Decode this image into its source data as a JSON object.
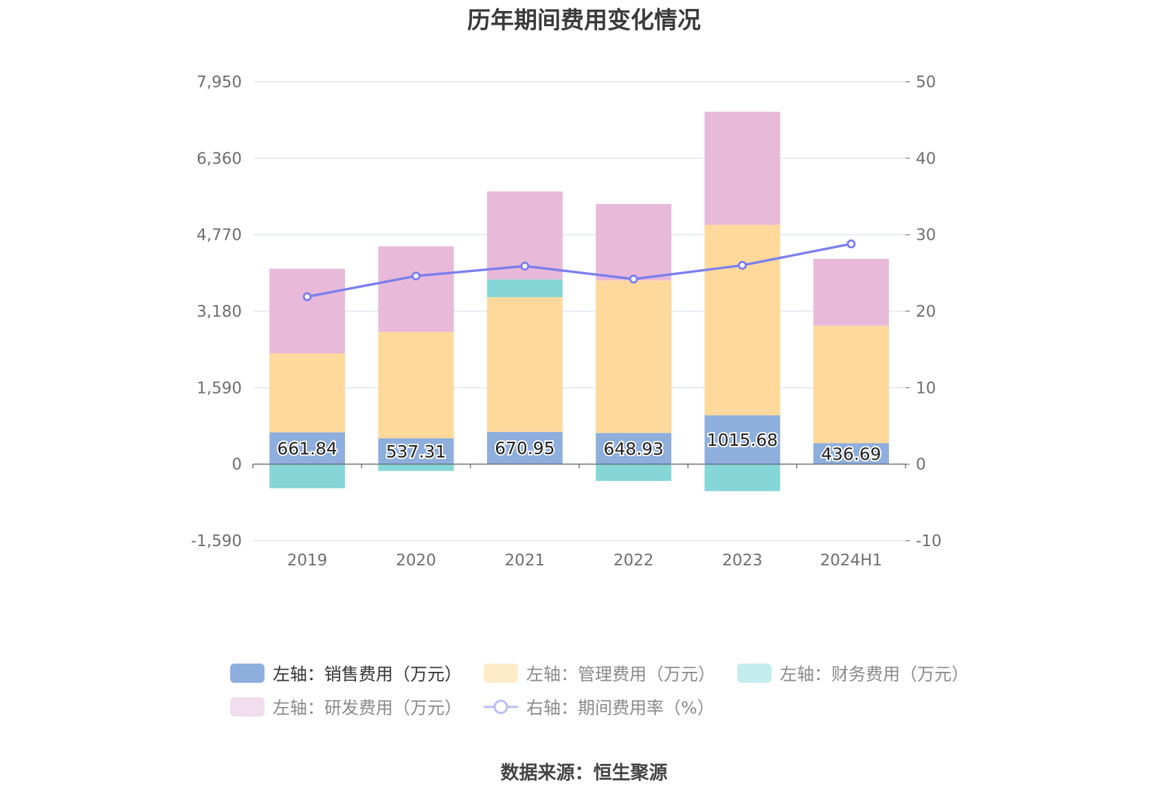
{
  "title": "历年期间费用变化情况",
  "source": "数据来源：恒生聚源",
  "chart_data": {
    "type": "bar",
    "categories": [
      "2019",
      "2020",
      "2021",
      "2022",
      "2023",
      "2024H1"
    ],
    "y_left": {
      "ylim": [
        -1590,
        7950
      ],
      "ticks": [
        "-1,590",
        "0",
        "1,590",
        "3,180",
        "4,770",
        "6,360",
        "7,950"
      ]
    },
    "y_right": {
      "ylim": [
        -10,
        50
      ],
      "ticks": [
        "-10",
        "0",
        "10",
        "20",
        "30",
        "40",
        "50"
      ]
    },
    "series": [
      {
        "name": "左轴：销售费用（万元）",
        "type": "bar",
        "axis": "left",
        "color": "#8eaedd",
        "values": [
          661.84,
          537.31,
          670.95,
          648.93,
          1015.68,
          436.69
        ],
        "labels": [
          "661.84",
          "537.31",
          "670.95",
          "648.93",
          "1015.68",
          "436.69"
        ]
      },
      {
        "name": "左轴：管理费用（万元）",
        "type": "bar",
        "axis": "left",
        "color": "#fed99b",
        "values": [
          1640,
          2210,
          2800,
          3170,
          3960,
          2440
        ]
      },
      {
        "name": "左轴：财务费用（万元）",
        "type": "bar",
        "axis": "left",
        "color": "#86d6d8",
        "values": [
          -500,
          -140,
          370,
          -350,
          -560,
          0
        ]
      },
      {
        "name": "左轴：研发费用（万元）",
        "type": "bar",
        "axis": "left",
        "color": "#e8b9d9",
        "values": [
          1760,
          1780,
          1830,
          1590,
          2350,
          1390
        ]
      },
      {
        "name": "右轴：期间费用率（%）",
        "type": "line",
        "axis": "right",
        "color": "#7b7fee",
        "values": [
          21.9,
          24.6,
          25.9,
          24.2,
          26.0,
          28.8
        ]
      }
    ],
    "legend": {
      "position": "bottom"
    },
    "grid": true
  }
}
